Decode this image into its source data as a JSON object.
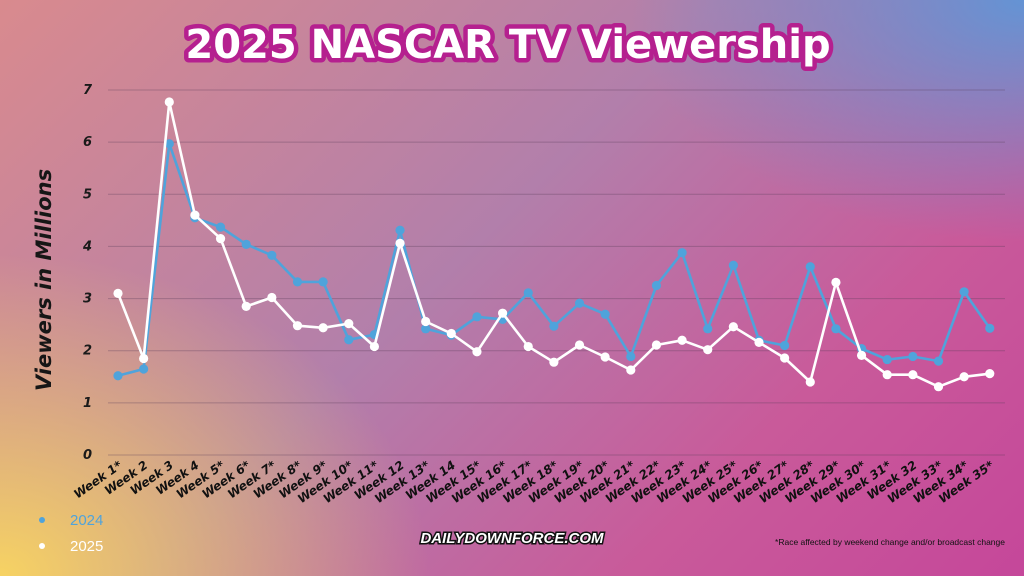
{
  "chart_data": {
    "type": "line",
    "title": "2025 NASCAR TV Viewership",
    "ylabel": "Viewers in Millions",
    "xlabel": "",
    "ylim": [
      0,
      7
    ],
    "yticks": [
      0,
      1,
      2,
      3,
      4,
      5,
      6,
      7
    ],
    "grid": true,
    "legend_position": "bottom-left",
    "categories": [
      "Week 1*",
      "Week 2",
      "Week 3",
      "Week 4",
      "Week 5*",
      "Week 6*",
      "Week 7*",
      "Week 8*",
      "Week 9*",
      "Week 10*",
      "Week 11*",
      "Week 12",
      "Week 13*",
      "Week 14",
      "Week 15*",
      "Week 16*",
      "Week 17*",
      "Week 18*",
      "Week 19*",
      "Week 20*",
      "Week 21*",
      "Week 22*",
      "Week 23*",
      "Week 24*",
      "Week 25*",
      "Week 26*",
      "Week 27*",
      "Week 28*",
      "Week 29*",
      "Week 30*",
      "Week 31*",
      "Week 32",
      "Week 33*",
      "Week 34*",
      "Week 35*"
    ],
    "series": [
      {
        "name": "2024",
        "color": "#4fa3db",
        "values": [
          1.52,
          1.65,
          5.97,
          4.55,
          4.37,
          4.04,
          3.83,
          3.32,
          3.32,
          2.21,
          2.31,
          4.31,
          2.42,
          2.3,
          2.65,
          2.6,
          3.11,
          2.47,
          2.91,
          2.7,
          1.89,
          3.25,
          3.88,
          2.42,
          3.64,
          2.2,
          2.1,
          3.61,
          2.42,
          2.04,
          1.83,
          1.89,
          1.8,
          3.13,
          2.43
        ]
      },
      {
        "name": "2025",
        "color": "#ffffff",
        "values": [
          3.1,
          1.85,
          6.77,
          4.6,
          4.15,
          2.85,
          3.02,
          2.48,
          2.44,
          2.52,
          2.08,
          4.06,
          2.56,
          2.33,
          1.98,
          2.72,
          2.08,
          1.78,
          2.11,
          1.88,
          1.63,
          2.11,
          2.2,
          2.02,
          2.46,
          2.16,
          1.86,
          1.4,
          3.31,
          1.91,
          1.54,
          1.54,
          1.31,
          1.5,
          1.56
        ]
      }
    ]
  },
  "brand": "DAILYDOWNFORCE.COM",
  "footnote": "*Race affected by weekend change and/or broadcast change",
  "legend": [
    {
      "label": "2024",
      "color": "#4fa3db"
    },
    {
      "label": "2025",
      "color": "#ffffff"
    }
  ]
}
